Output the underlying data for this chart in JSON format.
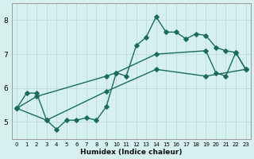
{
  "xlabel": "Humidex (Indice chaleur)",
  "bg_color": "#d6f0f0",
  "grid_color": "#c0dede",
  "line_color": "#1a6b5a",
  "xlim": [
    -0.5,
    23.5
  ],
  "ylim": [
    4.5,
    8.5
  ],
  "xticks": [
    0,
    1,
    2,
    3,
    4,
    5,
    6,
    7,
    8,
    9,
    10,
    11,
    12,
    13,
    14,
    15,
    16,
    17,
    18,
    19,
    20,
    21,
    22,
    23
  ],
  "yticks": [
    5,
    6,
    7,
    8
  ],
  "line1_x": [
    0,
    1,
    2,
    3,
    4,
    5,
    6,
    7,
    8,
    9,
    10,
    11,
    12,
    13,
    14,
    15,
    16,
    17,
    18,
    19,
    20,
    21,
    22,
    23
  ],
  "line1_y": [
    5.4,
    5.85,
    5.85,
    5.05,
    4.78,
    5.05,
    5.05,
    5.12,
    5.05,
    5.45,
    6.45,
    6.35,
    7.25,
    7.5,
    8.1,
    7.65,
    7.65,
    7.45,
    7.6,
    7.55,
    7.2,
    7.1,
    7.05,
    6.55
  ],
  "line2_x": [
    0,
    2,
    9,
    10,
    14,
    19,
    20,
    21,
    22,
    23
  ],
  "line2_y": [
    5.4,
    5.75,
    6.35,
    6.45,
    7.0,
    7.1,
    6.45,
    6.35,
    7.05,
    6.55
  ],
  "line3_x": [
    0,
    3,
    9,
    14,
    19,
    23
  ],
  "line3_y": [
    5.4,
    5.05,
    5.9,
    6.55,
    6.35,
    6.55
  ],
  "marker": "D",
  "markersize": 2.8,
  "linewidth": 1.0
}
